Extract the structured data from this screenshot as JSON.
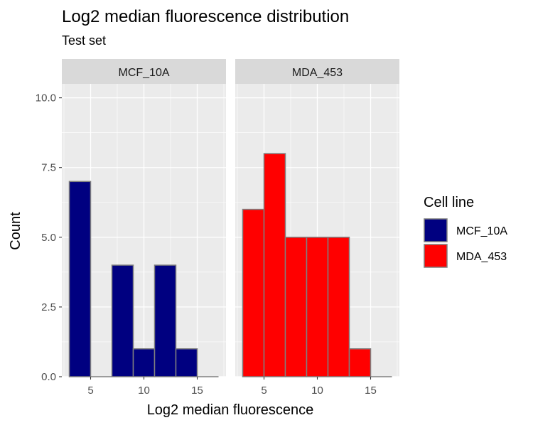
{
  "chart_data": {
    "type": "histogram",
    "title": "Log2 median fluorescence distribution",
    "subtitle": "Test set",
    "xlabel": "Log2 median fluorescence",
    "ylabel": "Count",
    "xlim": [
      2.3,
      17.7
    ],
    "ylim": [
      0,
      10.5
    ],
    "x_ticks": [
      5,
      10,
      15
    ],
    "y_ticks": [
      0,
      2.5,
      5,
      7.5,
      10
    ],
    "y_tick_labels": [
      "0.0",
      "2.5",
      "5.0",
      "7.5",
      "10.0"
    ],
    "bin_edges": [
      3,
      5,
      7,
      9,
      11,
      13,
      15,
      17
    ],
    "grid": true,
    "legend": {
      "title": "Cell line",
      "position": "right",
      "entries": [
        {
          "label": "MCF_10A",
          "color": "#000080"
        },
        {
          "label": "MDA_453",
          "color": "#ff0000"
        }
      ]
    },
    "bar_outline_color": "#7f7f7f",
    "panels": [
      {
        "name": "MCF_10A",
        "color": "#000080",
        "counts": [
          7,
          0,
          4,
          1,
          4,
          1,
          0
        ]
      },
      {
        "name": "MDA_453",
        "color": "#ff0000",
        "counts": [
          6,
          8,
          5,
          5,
          5,
          1,
          0
        ]
      }
    ]
  }
}
